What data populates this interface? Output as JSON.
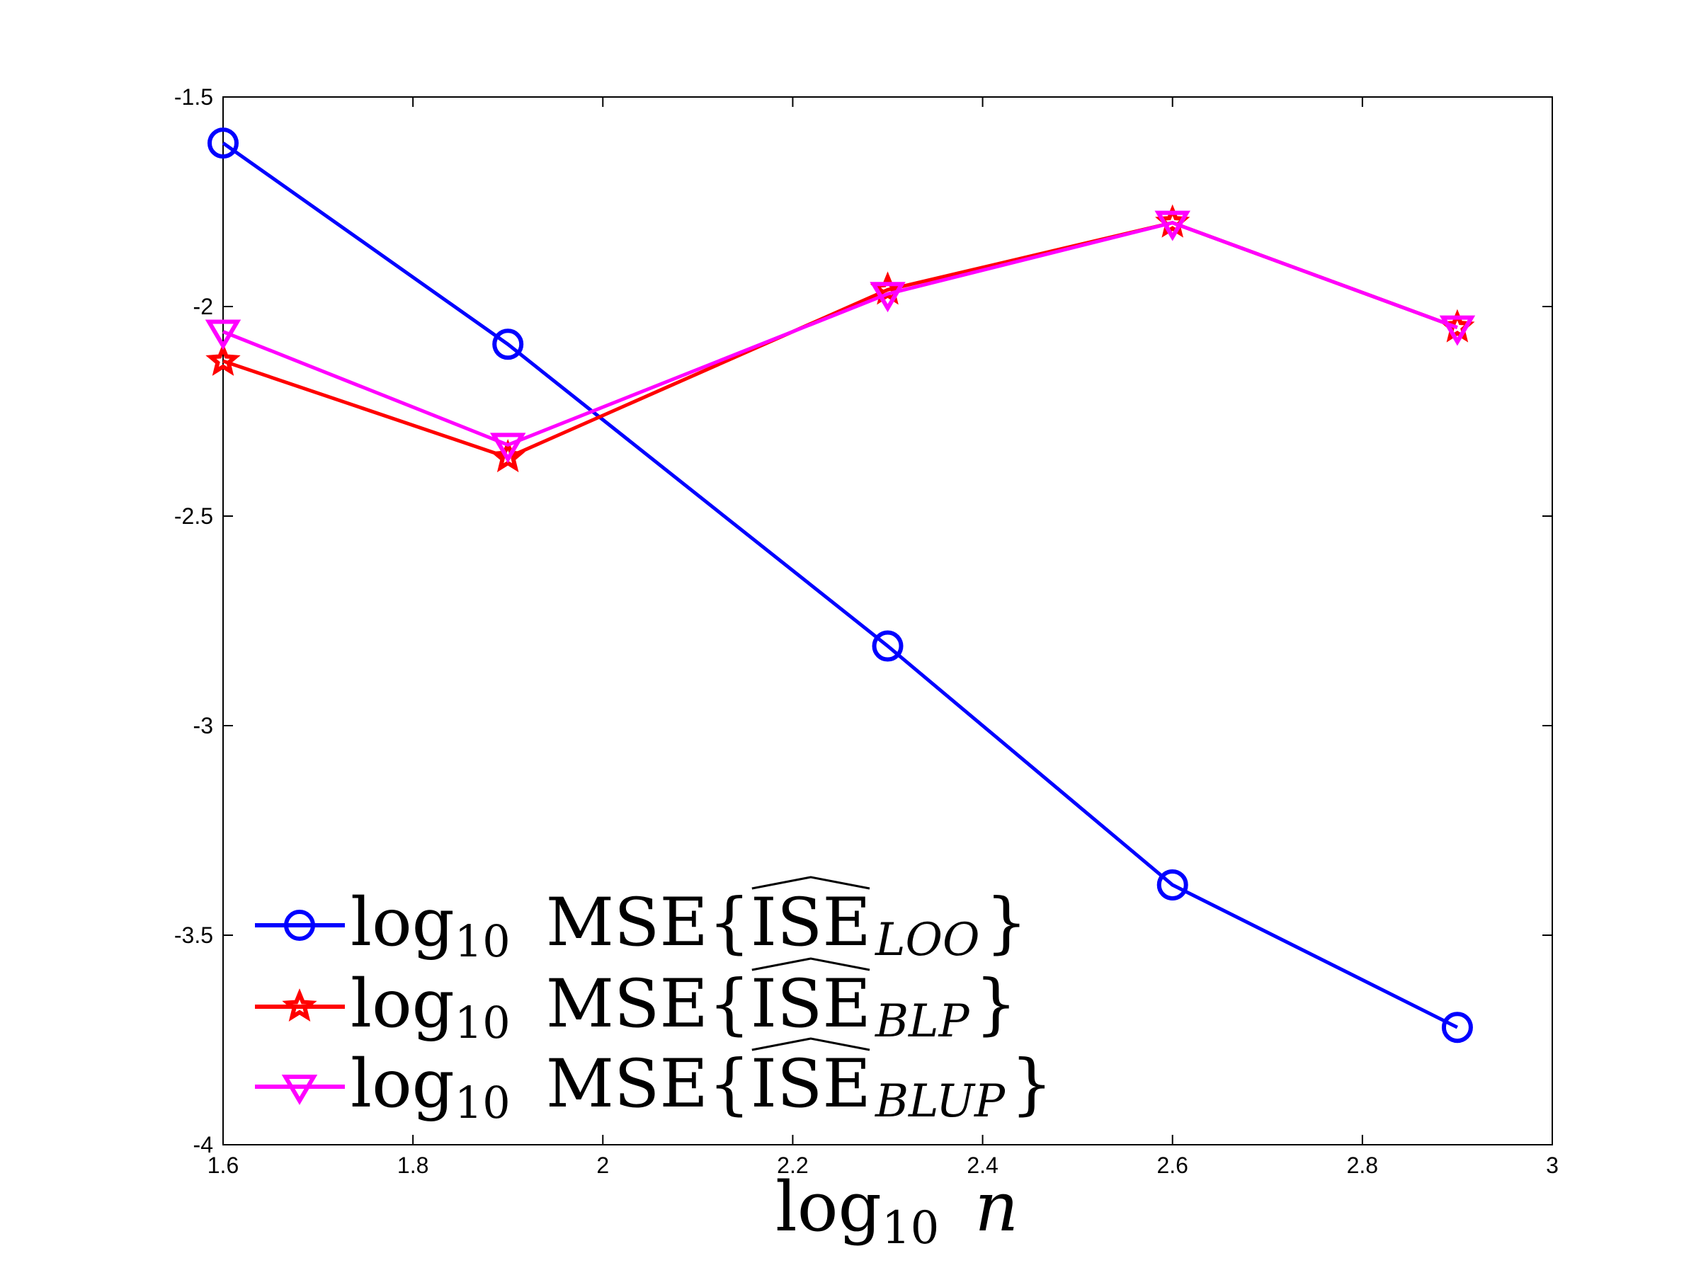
{
  "chart_data": {
    "type": "line",
    "title": "",
    "xlabel": {
      "prefix": "log",
      "sub": "10",
      "var": "n"
    },
    "ylabel": "",
    "x": [
      1.6,
      1.9,
      2.3,
      2.6,
      2.9
    ],
    "xlim": [
      1.6,
      3.0
    ],
    "ylim": [
      -4.0,
      -1.5
    ],
    "xticks": [
      1.6,
      1.8,
      2.0,
      2.2,
      2.4,
      2.6,
      2.8,
      3.0
    ],
    "xtick_labels": [
      "1.6",
      "1.8",
      "2",
      "2.2",
      "2.4",
      "2.6",
      "2.8",
      "3"
    ],
    "yticks": [
      -1.5,
      -2.0,
      -2.5,
      -3.0,
      -3.5,
      -4.0
    ],
    "ytick_labels": [
      "-1.5",
      "-2",
      "-2.5",
      "-3",
      "-3.5",
      "-4"
    ],
    "grid": false,
    "legend_position": "bottom-left",
    "series": [
      {
        "name": "LOO",
        "color": "#0000ff",
        "marker": "circle",
        "values": [
          -1.61,
          -2.09,
          -2.81,
          -3.38,
          -3.72
        ],
        "legend": {
          "prefix": "log",
          "sub": "10",
          "text": "MSE{",
          "hat": "ISE",
          "subscript": "LOO",
          "close": "}"
        }
      },
      {
        "name": "BLP",
        "color": "#ff0000",
        "marker": "star",
        "values": [
          -2.13,
          -2.36,
          -1.96,
          -1.8,
          -2.05
        ],
        "legend": {
          "prefix": "log",
          "sub": "10",
          "text": "MSE{",
          "hat": "ISE",
          "subscript": "BLP",
          "close": "}"
        }
      },
      {
        "name": "BLUP",
        "color": "#ff00ff",
        "marker": "triangle-down",
        "values": [
          -2.06,
          -2.33,
          -1.97,
          -1.8,
          -2.05
        ],
        "legend": {
          "prefix": "log",
          "sub": "10",
          "text": "MSE{",
          "hat": "ISE",
          "subscript": "BLUP",
          "close": "}"
        }
      }
    ]
  }
}
